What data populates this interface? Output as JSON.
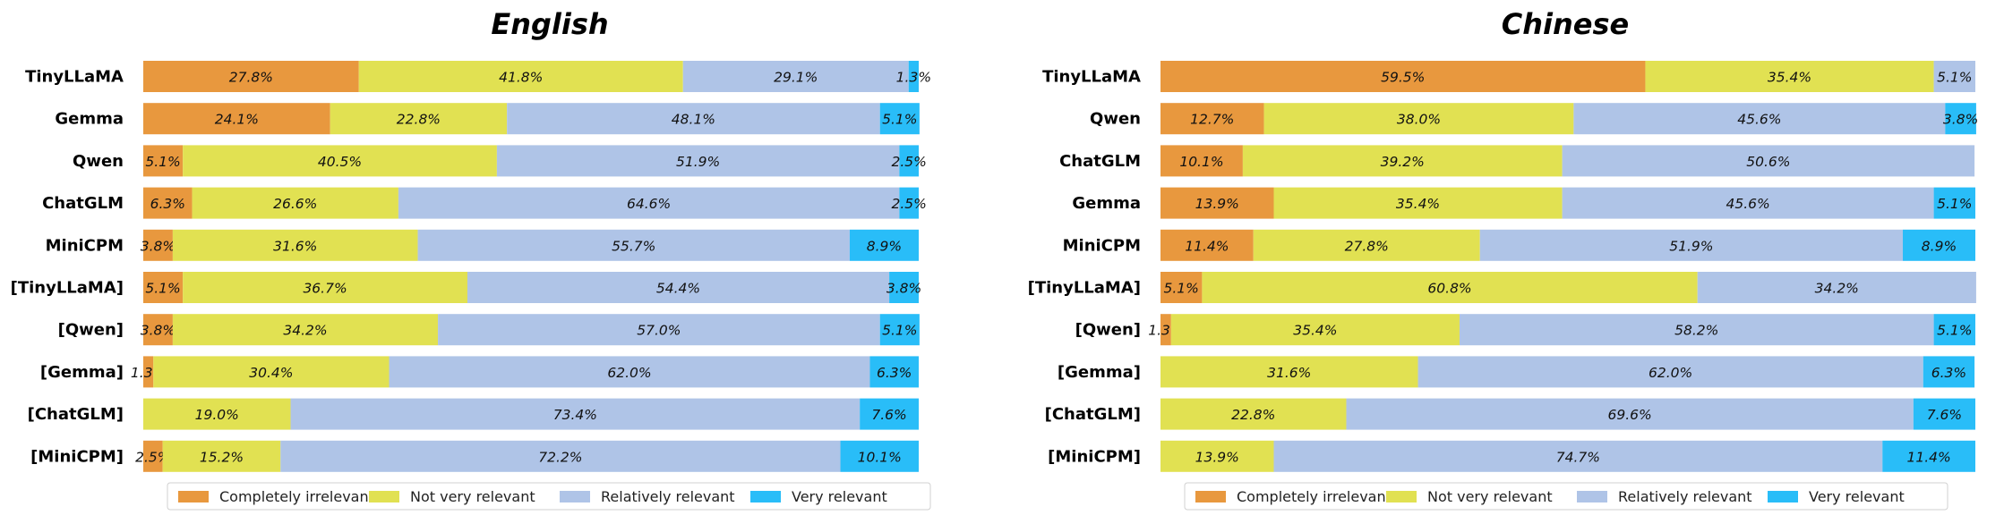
{
  "legend": [
    {
      "label": "Completely irrelevant",
      "color": "#E8983E"
    },
    {
      "label": "Not very relevant",
      "color": "#E1E152"
    },
    {
      "label": "Relatively relevant",
      "color": "#AFC4E7"
    },
    {
      "label": "Very relevant",
      "color": "#29BDF8"
    }
  ],
  "chart_data": [
    {
      "type": "bar",
      "orientation": "horizontal-stacked-100",
      "title": "English",
      "categories": [
        "TinyLLaMA",
        "Gemma",
        "Qwen",
        "ChatGLM",
        "MiniCPM",
        "[TinyLLaMA]",
        "[Qwen]",
        "[Gemma]",
        "[ChatGLM]",
        "[MiniCPM]"
      ],
      "xlim": [
        0,
        100
      ],
      "legend_position": "bottom",
      "series": [
        {
          "name": "Completely irrelevant",
          "values": [
            27.8,
            24.1,
            5.1,
            6.3,
            3.8,
            5.1,
            3.8,
            1.3,
            0,
            2.5
          ]
        },
        {
          "name": "Not very relevant",
          "values": [
            41.8,
            22.8,
            40.5,
            26.6,
            31.6,
            36.7,
            34.2,
            30.4,
            19.0,
            15.2
          ]
        },
        {
          "name": "Relatively relevant",
          "values": [
            29.1,
            48.1,
            51.9,
            64.6,
            55.7,
            54.4,
            57.0,
            62.0,
            73.4,
            72.2
          ]
        },
        {
          "name": "Very relevant",
          "values": [
            1.3,
            5.1,
            2.5,
            2.5,
            8.9,
            3.8,
            5.1,
            6.3,
            7.6,
            10.1
          ]
        }
      ]
    },
    {
      "type": "bar",
      "orientation": "horizontal-stacked-100",
      "title": "Chinese",
      "categories": [
        "TinyLLaMA",
        "Qwen",
        "ChatGLM",
        "Gemma",
        "MiniCPM",
        "[TinyLLaMA]",
        "[Qwen]",
        "[Gemma]",
        "[ChatGLM]",
        "[MiniCPM]"
      ],
      "xlim": [
        0,
        100
      ],
      "legend_position": "bottom",
      "series": [
        {
          "name": "Completely irrelevant",
          "values": [
            59.5,
            12.7,
            10.1,
            13.9,
            11.4,
            5.1,
            1.3,
            0,
            0,
            0
          ]
        },
        {
          "name": "Not very relevant",
          "values": [
            35.4,
            38.0,
            39.2,
            35.4,
            27.8,
            60.8,
            35.4,
            31.6,
            22.8,
            13.9
          ]
        },
        {
          "name": "Relatively relevant",
          "values": [
            5.1,
            45.6,
            50.6,
            45.6,
            51.9,
            34.2,
            58.2,
            62.0,
            69.6,
            74.7
          ]
        },
        {
          "name": "Very relevant",
          "values": [
            0,
            3.8,
            0,
            5.1,
            8.9,
            0,
            5.1,
            6.3,
            7.6,
            11.4
          ]
        }
      ]
    }
  ]
}
